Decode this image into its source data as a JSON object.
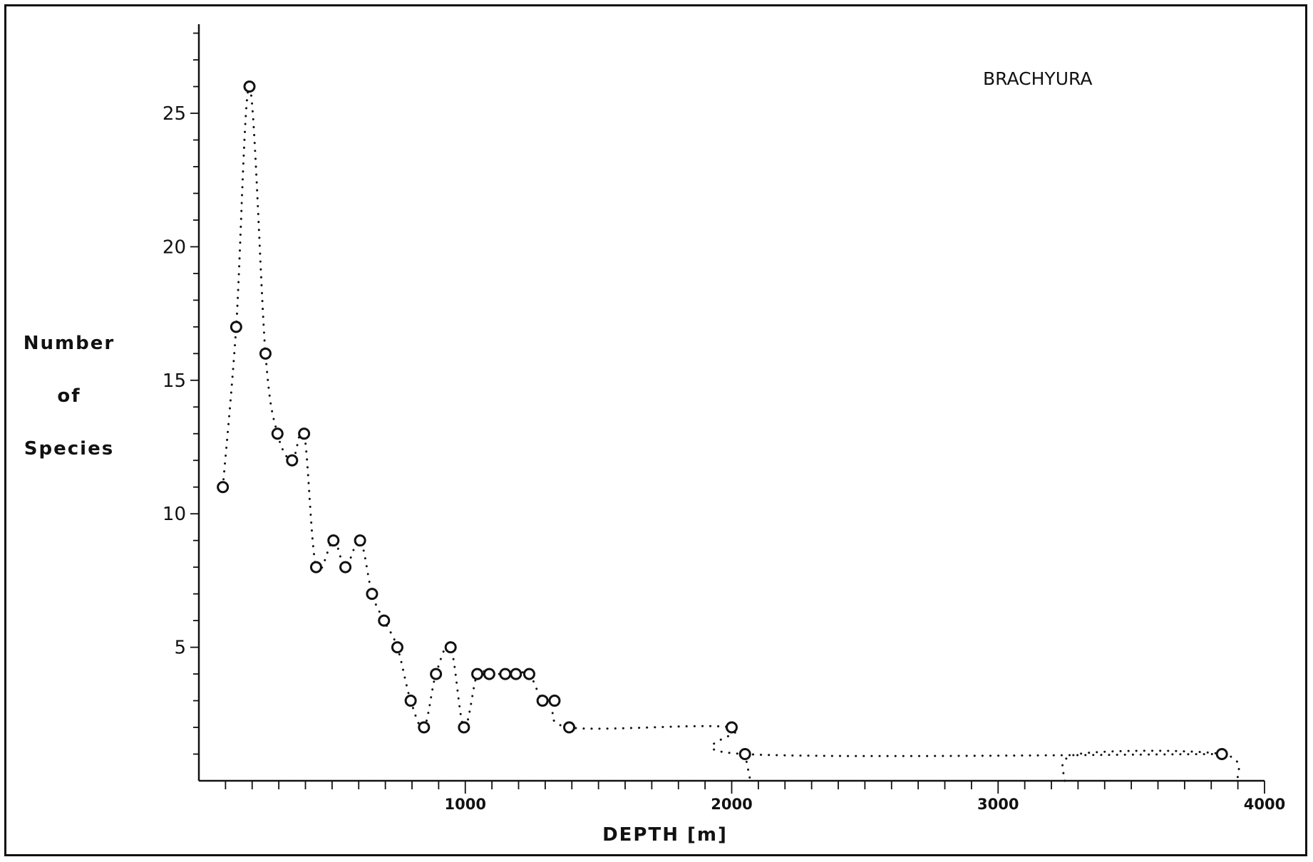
{
  "chart_data": {
    "type": "line",
    "title": "BRACHYURA",
    "xlabel": "DEPTH [m]",
    "ylabel": [
      "Number",
      "of",
      "Species"
    ],
    "xlim": [
      0,
      4000
    ],
    "ylim": [
      0,
      28
    ],
    "x_ticks": [
      1000,
      2000,
      3000,
      4000
    ],
    "x_tick_labels": [
      "1000",
      "2000",
      "3000",
      "4000"
    ],
    "y_ticks": [
      5,
      10,
      15,
      20,
      25
    ],
    "y_tick_labels": [
      "5",
      "10",
      "15",
      "20",
      "25"
    ],
    "x_minor_step": 100,
    "y_minor_step": 1,
    "grid": false,
    "legend": "none",
    "line_style": "dotted",
    "marker": "open-circle",
    "series": [
      {
        "x": [
          90,
          140,
          190,
          250,
          295,
          350,
          395,
          440,
          505,
          550,
          605,
          650,
          695,
          745,
          795,
          845,
          890,
          945,
          995,
          1045,
          1090,
          1150,
          1190,
          1240,
          1290,
          1335,
          1390,
          2000,
          2050,
          3840
        ],
        "y": [
          11,
          17,
          26,
          16,
          13,
          12,
          13,
          8,
          9,
          8,
          9,
          7,
          6,
          5,
          3,
          2,
          4,
          5,
          2,
          4,
          4,
          4,
          4,
          4,
          3,
          3,
          2,
          2,
          1,
          1
        ]
      }
    ],
    "connector_segments": [
      {
        "x": [
          2050,
          2070
        ],
        "y": [
          1,
          0
        ]
      },
      {
        "x": [
          3250,
          3300,
          3840,
          3900
        ],
        "y": [
          0,
          1,
          1,
          0
        ]
      }
    ]
  }
}
